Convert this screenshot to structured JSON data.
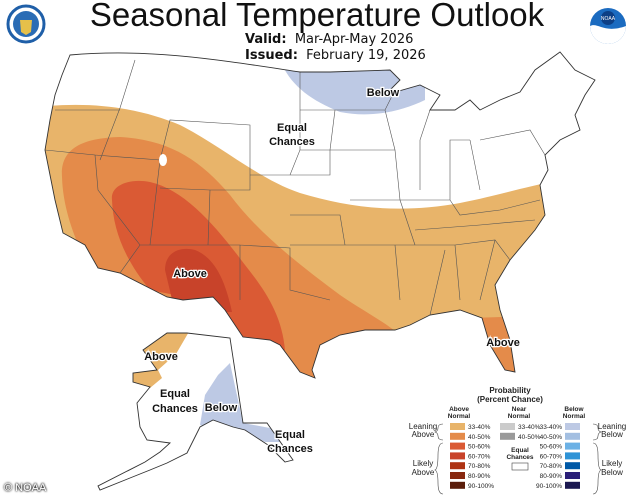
{
  "header": {
    "title": "Seasonal Temperature Outlook",
    "valid_label": "Valid:",
    "valid_value": "Mar-Apr-May 2026",
    "issued_label": "Issued:",
    "issued_value": "February 19, 2026",
    "left_logo": "doc-seal-icon",
    "right_logo": "noaa-logo-icon",
    "right_logo_text": "NOAA"
  },
  "map_labels": {
    "conus_below": "Below",
    "conus_equal_1": "Equal",
    "conus_equal_2": "Chances",
    "conus_above_sw": "Above",
    "conus_above_fl": "Above",
    "ak_above": "Above",
    "ak_equal_w_1": "Equal",
    "ak_equal_w_2": "Chances",
    "ak_below": "Below",
    "ak_equal_se_1": "Equal",
    "ak_equal_se_2": "Chances"
  },
  "colors": {
    "above_33_40": "#e8b46a",
    "above_40_50": "#e48b4a",
    "above_50_60": "#da5a34",
    "above_60_70": "#c8432a",
    "above_70_80": "#ae3314",
    "above_80_90": "#882810",
    "above_90_100": "#5a1d0b",
    "near_33_40": "#cbcbcb",
    "near_40_50": "#9a9a9a",
    "below_33_40": "#bdc9e4",
    "below_40_50": "#a3bfe1",
    "below_50_60": "#6cb1e5",
    "below_60_70": "#2f93d6",
    "below_70_80": "#0058a6",
    "below_80_90": "#2b1f78",
    "below_90_100": "#1b1850"
  },
  "legend": {
    "title_1": "Probability",
    "title_2": "(Percent Chance)",
    "above_head_1": "Above",
    "above_head_2": "Normal",
    "near_head_1": "Near",
    "near_head_2": "Normal",
    "below_head_1": "Below",
    "below_head_2": "Normal",
    "leaning_above_1": "Leaning",
    "leaning_above_2": "Above",
    "likely_above_1": "Likely",
    "likely_above_2": "Above",
    "leaning_below_1": "Leaning",
    "leaning_below_2": "Below",
    "likely_below_1": "Likely",
    "likely_below_2": "Below",
    "equal_1": "Equal",
    "equal_2": "Chances",
    "above_ranges": [
      "33-40%",
      "40-50%",
      "50-60%",
      "60-70%",
      "70-80%",
      "80-90%",
      "90-100%"
    ],
    "near_ranges": [
      "33-40%",
      "40-50%"
    ],
    "below_ranges": [
      "33-40%",
      "40-50%",
      "50-60%",
      "60-70%",
      "70-80%",
      "80-90%",
      "90-100%"
    ]
  },
  "credit": "© NOAA"
}
